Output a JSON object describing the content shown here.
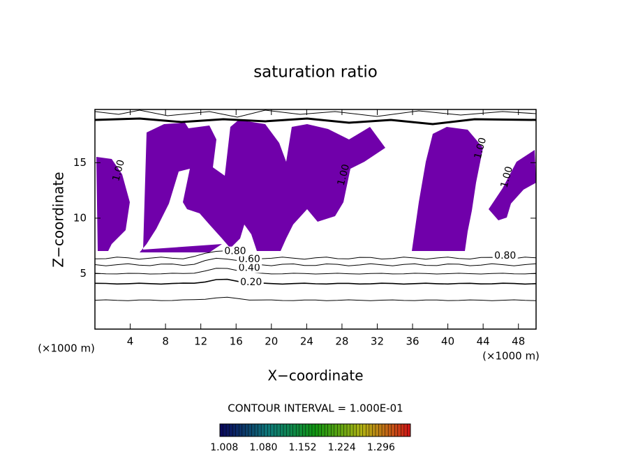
{
  "chart_data": {
    "type": "contour",
    "title": "saturation ratio",
    "xlabel": "X−coordinate",
    "ylabel": "Z−coordinate",
    "x_unit": "(×1000 m)",
    "y_unit": "(×1000 m)",
    "xlim": [
      0,
      50
    ],
    "ylim": [
      0,
      19.8
    ],
    "xticks": [
      4,
      8,
      12,
      16,
      20,
      24,
      28,
      32,
      36,
      40,
      44,
      48
    ],
    "yticks": [
      5,
      10,
      15
    ],
    "fill_color": "#7000aa",
    "contours": [
      {
        "level": 0.1,
        "z": 2.6
      },
      {
        "level": 0.2,
        "z": 4.1
      },
      {
        "level": 0.4,
        "z": 5.0
      },
      {
        "level": 0.6,
        "z": 5.8
      },
      {
        "level": 0.8,
        "z": 6.4
      }
    ],
    "contour_labels": [
      {
        "value": 0.2,
        "label": "0.20",
        "x": 17.7,
        "z": 4.2
      },
      {
        "value": 0.4,
        "label": "0.40",
        "x": 17.5,
        "z": 5.5
      },
      {
        "value": 0.6,
        "label": "0.60",
        "x": 17.5,
        "z": 6.3
      },
      {
        "value": 0.8,
        "label": "0.80",
        "x": 15.9,
        "z": 7.0
      },
      {
        "value": 0.8,
        "label": "0.80",
        "x": 46.5,
        "z": 6.6
      },
      {
        "value": 1.0,
        "label": "1.00",
        "x": 2.7,
        "z": 14.3
      },
      {
        "value": 1.0,
        "label": "1.00",
        "x": 43.7,
        "z": 16.3
      },
      {
        "value": 1.0,
        "label": "1.00",
        "x": 46.7,
        "z": 13.7
      },
      {
        "value": 1.0,
        "label": "1.00",
        "x": 28.2,
        "z": 13.9
      }
    ],
    "contour_interval": "CONTOUR INTERVAL = 1.000E-01",
    "colorbar_lim": [
      1.0,
      1.35
    ],
    "colorbar_ticks": [
      {
        "value": 1.008,
        "label": "1.008"
      },
      {
        "value": 1.08,
        "label": "1.080"
      },
      {
        "value": 1.152,
        "label": "1.152"
      },
      {
        "value": 1.224,
        "label": "1.224"
      },
      {
        "value": 1.296,
        "label": "1.296"
      }
    ]
  }
}
